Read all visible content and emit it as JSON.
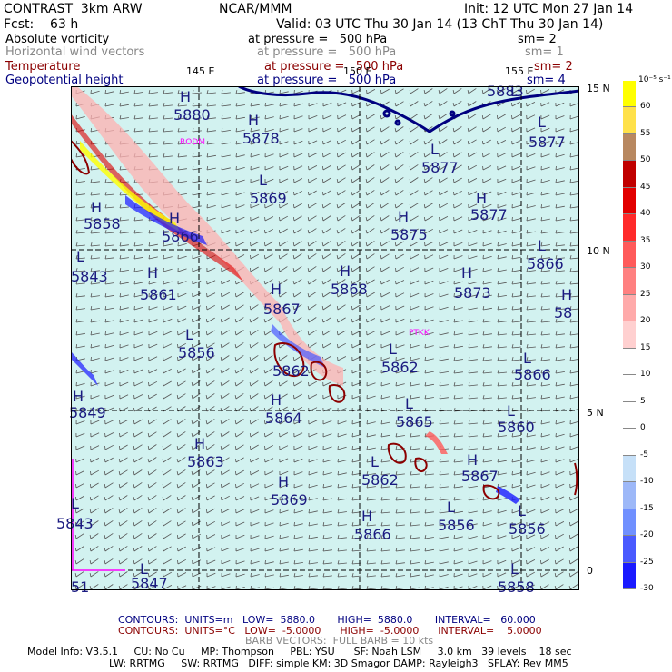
{
  "header": {
    "model_title": "CONTRAST  3km ARW",
    "org": "NCAR/MMM",
    "init": "Init: 12 UTC Mon 27 Jan 14",
    "fcst": "Fcst:    63 h",
    "valid": "Valid: 03 UTC Thu 30 Jan 14 (13 ChT Thu 30 Jan 14)"
  },
  "fields": [
    {
      "name": "Absolute vorticity",
      "level": "at pressure =   500 hPa",
      "smooth": "sm= 2",
      "color": "#000000"
    },
    {
      "name": "Horizontal wind vectors",
      "level": "at pressure =   500 hPa",
      "smooth": "sm= 1",
      "color": "#888888"
    },
    {
      "name": "Temperature",
      "level": "at pressure =   500 hPa",
      "smooth": "sm= 2",
      "color": "#8b0000"
    },
    {
      "name": "Geopotential height",
      "level": "at pressure =   500 hPa",
      "smooth": "sm= 4",
      "color": "#000080"
    }
  ],
  "axes": {
    "lon_ticks": [
      "145 E",
      "150 E",
      "155 E"
    ],
    "lat_ticks": [
      "15 N",
      "10 N",
      "5 N",
      "0"
    ]
  },
  "stations": [
    "RODM",
    "PTKK"
  ],
  "contour_labels": [
    {
      "type": "H",
      "value": "5880"
    },
    {
      "type": "H",
      "value": "5878"
    },
    {
      "type": "L",
      "value": "5869"
    },
    {
      "type": "H",
      "value": "5858"
    },
    {
      "type": "H",
      "value": "5866"
    },
    {
      "type": "L",
      "value": "5843"
    },
    {
      "type": "H",
      "value": "5861"
    },
    {
      "type": "H",
      "value": "5868"
    },
    {
      "type": "H",
      "value": "5867"
    },
    {
      "type": "L",
      "value": "5856"
    },
    {
      "type": "",
      "value": "5862"
    },
    {
      "type": "H",
      "value": "5849"
    },
    {
      "type": "H",
      "value": "5864"
    },
    {
      "type": "H",
      "value": "5863"
    },
    {
      "type": "H",
      "value": "5869"
    },
    {
      "type": "L",
      "value": "5843"
    },
    {
      "type": "L",
      "value": "5847"
    },
    {
      "type": "",
      "value": "51"
    },
    {
      "type": "L",
      "value": "5877"
    },
    {
      "type": "H",
      "value": "5877"
    },
    {
      "type": "H",
      "value": "5875"
    },
    {
      "type": "L",
      "value": "5883"
    },
    {
      "type": "L",
      "value": "5877"
    },
    {
      "type": "L",
      "value": "5866"
    },
    {
      "type": "H",
      "value": "5873"
    },
    {
      "type": "H",
      "value": "58"
    },
    {
      "type": "L",
      "value": "5862"
    },
    {
      "type": "L",
      "value": "5866"
    },
    {
      "type": "L",
      "value": "5865"
    },
    {
      "type": "L",
      "value": "5860"
    },
    {
      "type": "L",
      "value": "5862"
    },
    {
      "type": "H",
      "value": "5867"
    },
    {
      "type": "L",
      "value": "5856"
    },
    {
      "type": "H",
      "value": "5866"
    },
    {
      "type": "L",
      "value": "5856"
    },
    {
      "type": "L",
      "value": "5858"
    }
  ],
  "colorbar": {
    "unit": "10⁻⁵ s⁻¹",
    "labels": [
      "60",
      "55",
      "50",
      "45",
      "40",
      "35",
      "30",
      "25",
      "20",
      "15",
      "10",
      "5",
      "0",
      "-5",
      "-10",
      "-15",
      "-20",
      "-25",
      "-30"
    ],
    "colors": [
      "#ffff00",
      "#ffe14a",
      "#b88860",
      "#c00000",
      "#e20000",
      "#ff2a2a",
      "#ff5a5a",
      "#ff8080",
      "#ffaaaa",
      "#ffd0d0",
      "#ffffff",
      "#ffffff",
      "#ffffff",
      "#ffffff",
      "#c6e0f8",
      "#9db8f8",
      "#7090ff",
      "#4a5aff",
      "#1a1aff"
    ]
  },
  "footer": {
    "contours_a": "CONTOURS:  UNITS=m   LOW=  5880.0       HIGH=  5880.0       INTERVAL=   60.000",
    "contours_b": "CONTOURS:  UNITS=°C   LOW=  -5.0000      HIGH=  -5.0000      INTERVAL=    5.0000",
    "barb": "BARB VECTORS:  FULL BARB = 10 kts",
    "model_line1": "Model Info: V3.5.1     CU: No Cu     MP: Thompson     PBL: YSU      SF: Noah LSM     3.0 km   39 levels    18 sec",
    "model_line2": "LW: RRTMG     SW: RRTMG   DIFF: simple KM: 3D Smagor DAMP: Rayleigh3   SFLAY: Rev MM5"
  }
}
